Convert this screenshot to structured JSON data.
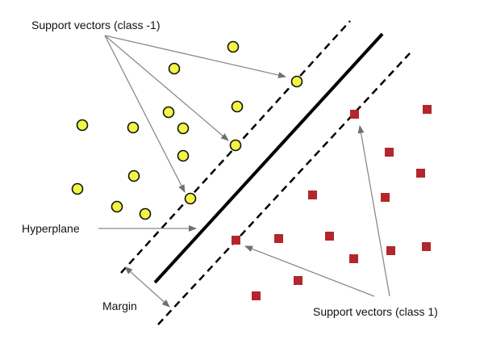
{
  "labels": {
    "support_vectors_neg": "Support vectors (class -1)",
    "hyperplane": "Hyperplane",
    "margin": "Margin",
    "support_vectors_pos": "Support vectors (class 1)"
  },
  "colors": {
    "circle_fill": "#f2f542",
    "circle_stroke": "#111111",
    "square_fill": "#b3262b",
    "line": "#000000",
    "arrow": "#8a8a8a"
  }
}
